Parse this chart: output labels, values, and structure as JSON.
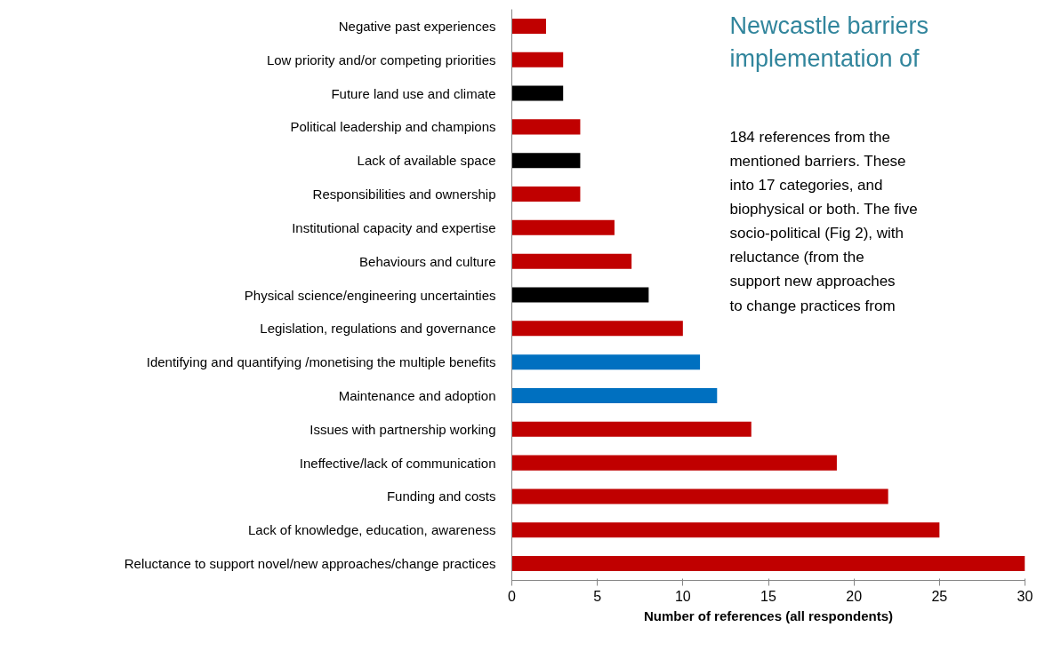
{
  "chart_data": {
    "type": "bar",
    "orientation": "horizontal",
    "title": "Newcastle barriers\nimplementation of",
    "xlabel": "Number of references (all respondents)",
    "categories": [
      "Negative past experiences",
      "Low priority and/or competing priorities",
      "Future land use and climate",
      "Political leadership and champions",
      "Lack of available space",
      "Responsibilities and ownership",
      "Institutional capacity and expertise",
      "Behaviours and culture",
      "Physical science/engineering uncertainties",
      "Legislation, regulations and governance",
      "Identifying and quantifying /monetising the multiple benefits",
      "Maintenance and adoption",
      "Issues with partnership working",
      "Ineffective/lack of communication",
      "Funding and costs",
      "Lack of knowledge, education, awareness",
      "Reluctance to support novel/new approaches/change practices"
    ],
    "values": [
      2,
      3,
      3,
      4,
      4,
      4,
      6,
      7,
      8,
      10,
      11,
      12,
      14,
      19,
      22,
      25,
      30
    ],
    "colors": [
      "#c00000",
      "#c00000",
      "#000000",
      "#c00000",
      "#000000",
      "#c00000",
      "#c00000",
      "#c00000",
      "#000000",
      "#c00000",
      "#0070c0",
      "#0070c0",
      "#c00000",
      "#c00000",
      "#c00000",
      "#c00000",
      "#c00000"
    ],
    "xlim": [
      0,
      30
    ],
    "xticks": [
      0,
      5,
      10,
      15,
      20,
      25,
      30
    ],
    "grid": false,
    "annotations": [
      "184 references from the",
      "mentioned barriers. These",
      "into 17 categories, and",
      "biophysical or both. The five",
      "socio-political (Fig 2), with",
      "reluctance (from the",
      "support new approaches",
      "to change practices from"
    ]
  }
}
